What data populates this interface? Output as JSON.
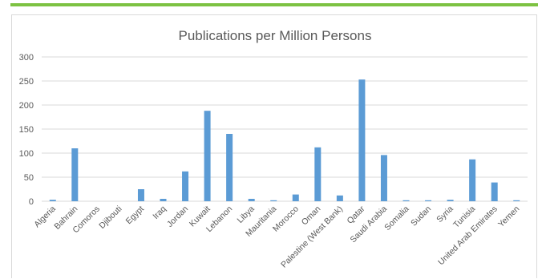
{
  "colors": {
    "accent": "#7dc242",
    "bar": "#5b9bd5",
    "grid": "#d9d9d9",
    "text": "#595959"
  },
  "chart_data": {
    "type": "bar",
    "title": "Publications per Million Persons",
    "xlabel": "",
    "ylabel": "",
    "ylim": [
      0,
      300
    ],
    "yticks": [
      0,
      50,
      100,
      150,
      200,
      250,
      300
    ],
    "grid": true,
    "legend": "none",
    "categories": [
      "Algeria",
      "Bahrain",
      "Comoros",
      "Djibouti",
      "Egypt",
      "Iraq",
      "Jordan",
      "Kuwait",
      "Lebanon",
      "Libya",
      "Mauritania",
      "Morocco",
      "Oman",
      "Palestine (West Bank)",
      "Qatar",
      "Saudi Arabia",
      "Somalia",
      "Sudan",
      "Syria",
      "Tunisia",
      "United Arab Emirates",
      "Yemen"
    ],
    "values": [
      3,
      110,
      0,
      0,
      25,
      5,
      62,
      188,
      140,
      5,
      2,
      14,
      112,
      12,
      253,
      96,
      2,
      2,
      3,
      87,
      39,
      2
    ]
  }
}
